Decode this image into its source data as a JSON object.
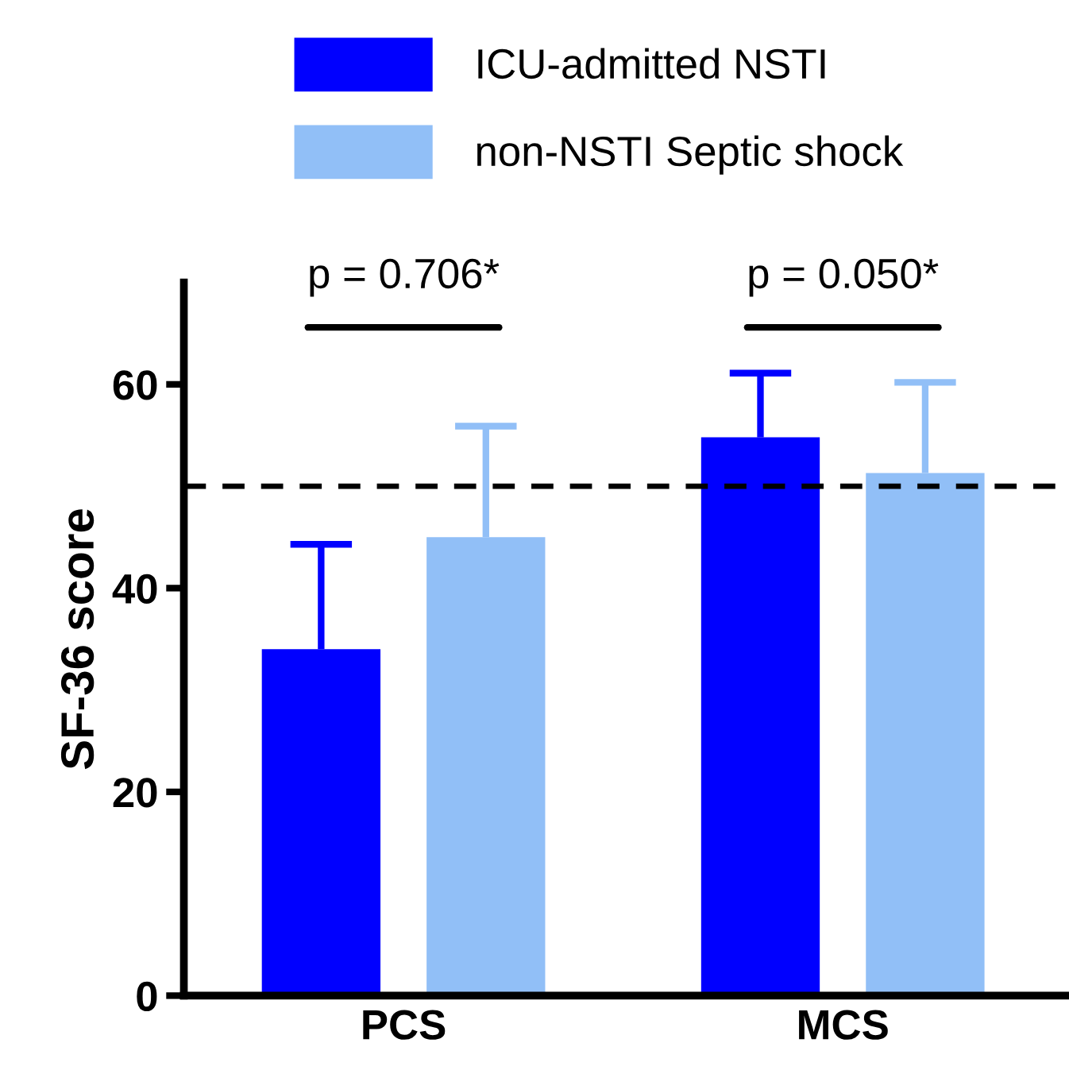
{
  "chart_data": {
    "type": "bar",
    "ylabel": "SF-36 score",
    "categories": [
      "PCS",
      "MCS"
    ],
    "series": [
      {
        "name": "ICU-admitted NSTI",
        "color": "#0000ff",
        "values": [
          34,
          54.8
        ],
        "errors": [
          [
            34,
            44.3
          ],
          [
            54.8,
            61.1
          ]
        ]
      },
      {
        "name": "non-NSTI Septic shock",
        "color": "#91bff7",
        "values": [
          45,
          51.3
        ],
        "errors": [
          [
            45,
            55.9
          ],
          [
            51.3,
            60.2
          ]
        ]
      }
    ],
    "ylim": [
      0,
      70
    ],
    "yticks": [
      0,
      20,
      40,
      60
    ],
    "ref_lines": [
      {
        "axis": "y",
        "value": 50,
        "line_style": "dashed",
        "color": "#000000"
      }
    ],
    "annotations": [
      "p = 0.706*",
      "p = 0.050*"
    ],
    "legend": "top",
    "grid": false
  }
}
